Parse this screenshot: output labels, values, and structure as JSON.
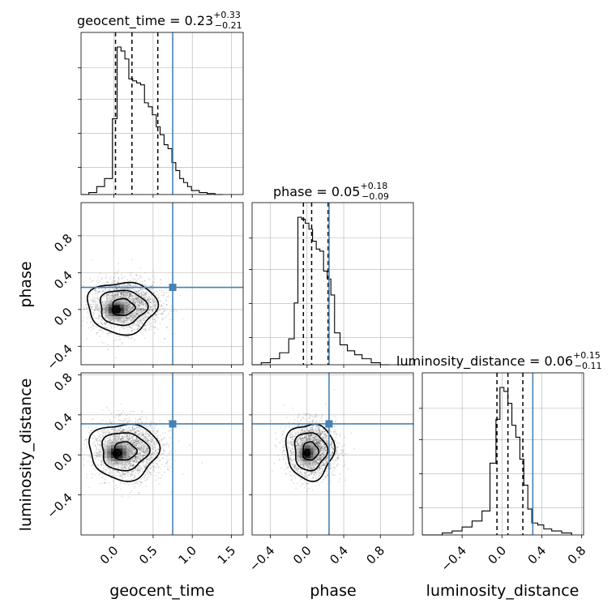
{
  "colors": {
    "truth": "#4682b4",
    "hist": "#000000",
    "grid": "#b0b0b0",
    "scatter": "#000000"
  },
  "chart_data": {
    "type": "corner",
    "parameters": [
      "geocent_time",
      "phase",
      "luminosity_distance"
    ],
    "titles": [
      {
        "param": "geocent_time",
        "main": "geocent_time = 0.23",
        "plus": "+0.33",
        "minus": "−0.21"
      },
      {
        "param": "phase",
        "main": "phase = 0.05",
        "plus": "+0.18",
        "minus": "−0.09"
      },
      {
        "param": "luminosity_distance",
        "main": "luminosity_distance = 0.06",
        "plus": "+0.15",
        "minus": "−0.11"
      }
    ],
    "truths": {
      "geocent_time": 0.75,
      "phase": 0.24,
      "luminosity_distance": 0.31
    },
    "ranges": {
      "geocent_time": [
        -0.42,
        1.65
      ],
      "phase": [
        -0.6,
        1.16
      ],
      "luminosity_distance": [
        -0.8,
        0.82
      ]
    },
    "ticks": {
      "geocent_time": [
        "0.0",
        "0.5",
        "1.0",
        "1.5"
      ],
      "phase": [
        "−0.4",
        "0.0",
        "0.4",
        "0.8"
      ],
      "luminosity_distance": [
        "−0.4",
        "0.0",
        "0.4",
        "0.8"
      ]
    },
    "tick_values": {
      "geocent_time": [
        0.0,
        0.5,
        1.0,
        1.5
      ],
      "phase": [
        -0.4,
        0.0,
        0.4,
        0.8
      ],
      "luminosity_distance": [
        -0.4,
        0.0,
        0.4,
        0.8
      ]
    },
    "quantiles": {
      "geocent_time": [
        0.02,
        0.23,
        0.56
      ],
      "phase": [
        -0.04,
        0.05,
        0.23
      ],
      "luminosity_distance": [
        -0.05,
        0.06,
        0.21
      ]
    },
    "histograms": {
      "geocent_time": {
        "edges": [
          -0.42,
          -0.32,
          -0.22,
          -0.12,
          -0.02,
          0.04,
          0.09,
          0.14,
          0.19,
          0.24,
          0.29,
          0.34,
          0.39,
          0.44,
          0.49,
          0.54,
          0.59,
          0.64,
          0.69,
          0.74,
          0.79,
          0.84,
          0.89,
          0.94,
          0.99,
          1.09,
          1.19,
          1.29,
          1.39
        ],
        "counts": [
          0.0,
          0.01,
          0.04,
          0.08,
          0.38,
          0.74,
          0.72,
          0.68,
          0.58,
          0.57,
          0.56,
          0.55,
          0.46,
          0.44,
          0.4,
          0.34,
          0.3,
          0.25,
          0.23,
          0.16,
          0.12,
          0.08,
          0.06,
          0.04,
          0.02,
          0.01,
          0.005,
          0.0
        ]
      },
      "phase": {
        "edges": [
          -0.6,
          -0.5,
          -0.4,
          -0.3,
          -0.2,
          -0.14,
          -0.1,
          -0.06,
          -0.02,
          0.02,
          0.06,
          0.1,
          0.14,
          0.18,
          0.22,
          0.26,
          0.3,
          0.36,
          0.44,
          0.52,
          0.6,
          0.7,
          0.8,
          0.9
        ],
        "counts": [
          0.0,
          0.01,
          0.03,
          0.06,
          0.13,
          0.31,
          0.74,
          0.73,
          0.71,
          0.68,
          0.62,
          0.58,
          0.57,
          0.47,
          0.43,
          0.35,
          0.16,
          0.1,
          0.07,
          0.05,
          0.03,
          0.01,
          0.0
        ]
      },
      "luminosity_distance": {
        "edges": [
          -0.8,
          -0.6,
          -0.5,
          -0.4,
          -0.3,
          -0.2,
          -0.12,
          -0.06,
          -0.02,
          0.02,
          0.06,
          0.1,
          0.14,
          0.18,
          0.22,
          0.26,
          0.3,
          0.36,
          0.42,
          0.5,
          0.6,
          0.7
        ],
        "counts": [
          0.0,
          0.01,
          0.02,
          0.04,
          0.07,
          0.12,
          0.36,
          0.58,
          0.74,
          0.72,
          0.66,
          0.55,
          0.49,
          0.38,
          0.25,
          0.13,
          0.06,
          0.05,
          0.03,
          0.02,
          0.01
        ]
      }
    },
    "densities": {
      "phase_vs_geocent_time": {
        "mean": [
          0.15,
          0.04
        ],
        "sd": [
          0.22,
          0.14
        ],
        "core": [
          0.03,
          0.0
        ]
      },
      "luminosity_distance_vs_geocent_time": {
        "mean": [
          0.18,
          0.05
        ],
        "sd": [
          0.22,
          0.14
        ],
        "core": [
          0.04,
          0.02
        ]
      },
      "luminosity_distance_vs_phase": {
        "mean": [
          0.05,
          0.05
        ],
        "sd": [
          0.13,
          0.14
        ],
        "core": [
          0.0,
          0.02
        ]
      }
    }
  }
}
